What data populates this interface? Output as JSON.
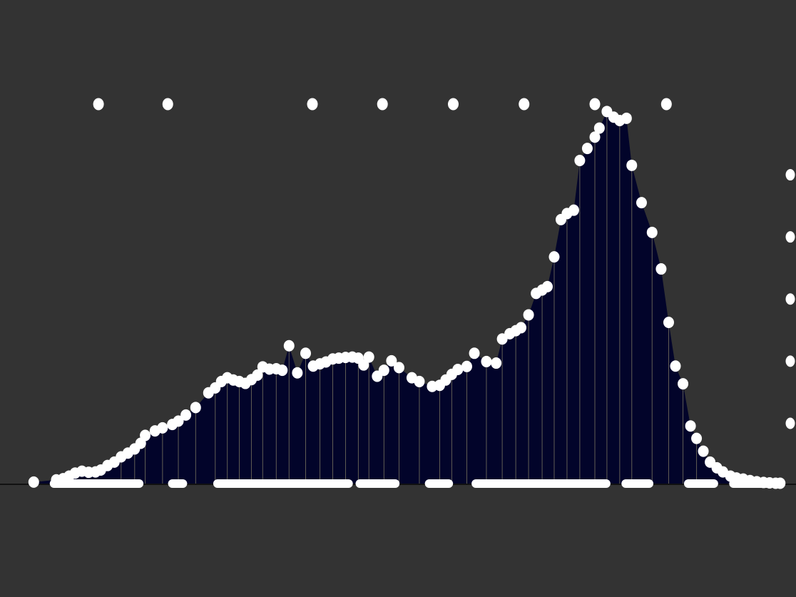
{
  "chart_data": {
    "type": "area",
    "title": "",
    "xlabel": "",
    "ylabel": "",
    "x_range": [
      0,
      100
    ],
    "ylim": [
      0,
      100
    ],
    "grid": false,
    "legend": "none",
    "colors": {
      "background": "#333333",
      "fill": "#02042a",
      "marker": "#ffffff",
      "stem": "#8a8466",
      "baseline": "#111111"
    },
    "series": [
      {
        "points": [
          [
            0.5,
            0.4
          ],
          [
            3.5,
            1.0
          ],
          [
            4.4,
            1.3
          ],
          [
            5.2,
            2.0
          ],
          [
            6.0,
            2.8
          ],
          [
            6.9,
            3.3
          ],
          [
            7.8,
            3.0
          ],
          [
            8.7,
            3.1
          ],
          [
            9.4,
            3.6
          ],
          [
            10.3,
            4.8
          ],
          [
            11.2,
            5.7
          ],
          [
            12.1,
            7.1
          ],
          [
            13.0,
            8.1
          ],
          [
            13.9,
            9.2
          ],
          [
            14.7,
            10.7
          ],
          [
            15.3,
            12.8
          ],
          [
            16.6,
            14.0
          ],
          [
            17.6,
            14.8
          ],
          [
            18.9,
            15.7
          ],
          [
            19.7,
            16.6
          ],
          [
            20.7,
            18.2
          ],
          [
            22.0,
            20.2
          ],
          [
            23.7,
            24.1
          ],
          [
            24.6,
            25.4
          ],
          [
            25.4,
            27.1
          ],
          [
            26.2,
            28.1
          ],
          [
            27.0,
            27.5
          ],
          [
            27.8,
            27.1
          ],
          [
            28.6,
            26.6
          ],
          [
            29.4,
            27.6
          ],
          [
            30.2,
            28.8
          ],
          [
            30.9,
            31.0
          ],
          [
            31.8,
            30.4
          ],
          [
            32.7,
            30.5
          ],
          [
            33.5,
            30.1
          ],
          [
            34.4,
            36.6
          ],
          [
            35.5,
            29.4
          ],
          [
            36.6,
            34.6
          ],
          [
            37.6,
            31.2
          ],
          [
            38.5,
            31.8
          ],
          [
            39.3,
            32.3
          ],
          [
            40.2,
            33.1
          ],
          [
            41.0,
            33.3
          ],
          [
            41.9,
            33.5
          ],
          [
            42.8,
            33.6
          ],
          [
            43.6,
            33.3
          ],
          [
            44.3,
            31.5
          ],
          [
            45.0,
            33.6
          ],
          [
            46.1,
            28.5
          ],
          [
            47.0,
            30.1
          ],
          [
            48.0,
            32.6
          ],
          [
            49.0,
            30.8
          ],
          [
            50.7,
            28.1
          ],
          [
            51.7,
            27.1
          ],
          [
            53.4,
            25.8
          ],
          [
            54.4,
            26.1
          ],
          [
            55.2,
            27.5
          ],
          [
            56.0,
            29.0
          ],
          [
            56.8,
            30.3
          ],
          [
            58.0,
            31.1
          ],
          [
            59.0,
            34.6
          ],
          [
            60.6,
            32.4
          ],
          [
            61.9,
            32.0
          ],
          [
            62.7,
            38.4
          ],
          [
            63.7,
            39.8
          ],
          [
            64.5,
            40.6
          ],
          [
            65.2,
            41.4
          ],
          [
            66.2,
            44.8
          ],
          [
            67.2,
            50.5
          ],
          [
            68.0,
            51.4
          ],
          [
            68.7,
            52.3
          ],
          [
            69.6,
            60.2
          ],
          [
            70.5,
            70.1
          ],
          [
            71.3,
            71.7
          ],
          [
            72.2,
            72.6
          ],
          [
            73.0,
            85.8
          ],
          [
            74.0,
            89.0
          ],
          [
            75.0,
            92.0
          ],
          [
            75.6,
            94.4
          ],
          [
            76.6,
            98.8
          ],
          [
            77.5,
            97.3
          ],
          [
            78.3,
            96.4
          ],
          [
            79.2,
            97.0
          ],
          [
            79.9,
            84.5
          ],
          [
            81.2,
            74.6
          ],
          [
            82.6,
            66.7
          ],
          [
            83.8,
            57.0
          ],
          [
            84.8,
            42.8
          ],
          [
            85.7,
            31.2
          ],
          [
            86.7,
            26.5
          ],
          [
            87.7,
            15.3
          ],
          [
            88.5,
            12.0
          ],
          [
            89.4,
            8.6
          ],
          [
            90.3,
            5.7
          ],
          [
            91.2,
            4.2
          ],
          [
            92.0,
            3.1
          ],
          [
            93.0,
            2.0
          ],
          [
            93.8,
            1.5
          ],
          [
            94.7,
            1.2
          ],
          [
            95.6,
            0.8
          ],
          [
            96.5,
            0.5
          ],
          [
            97.4,
            0.3
          ],
          [
            98.2,
            0.2
          ],
          [
            99.0,
            0.1
          ],
          [
            99.6,
            0.1
          ]
        ]
      }
    ],
    "top_markers_x": [
      9.1,
      18.3,
      37.5,
      46.8,
      56.2,
      65.6,
      75.0,
      84.5
    ],
    "right_markers_y": [
      16.0,
      32.5,
      49.0,
      65.5,
      82.0
    ],
    "baseline_marker_ranges": [
      [
        3.2,
        14.5
      ],
      [
        18.9,
        20.3
      ],
      [
        24.9,
        42.3
      ],
      [
        43.8,
        48.5
      ],
      [
        53.0,
        55.6
      ],
      [
        59.2,
        76.5
      ],
      [
        79.1,
        82.2
      ],
      [
        87.4,
        90.8
      ],
      [
        93.4,
        98.4
      ]
    ]
  }
}
